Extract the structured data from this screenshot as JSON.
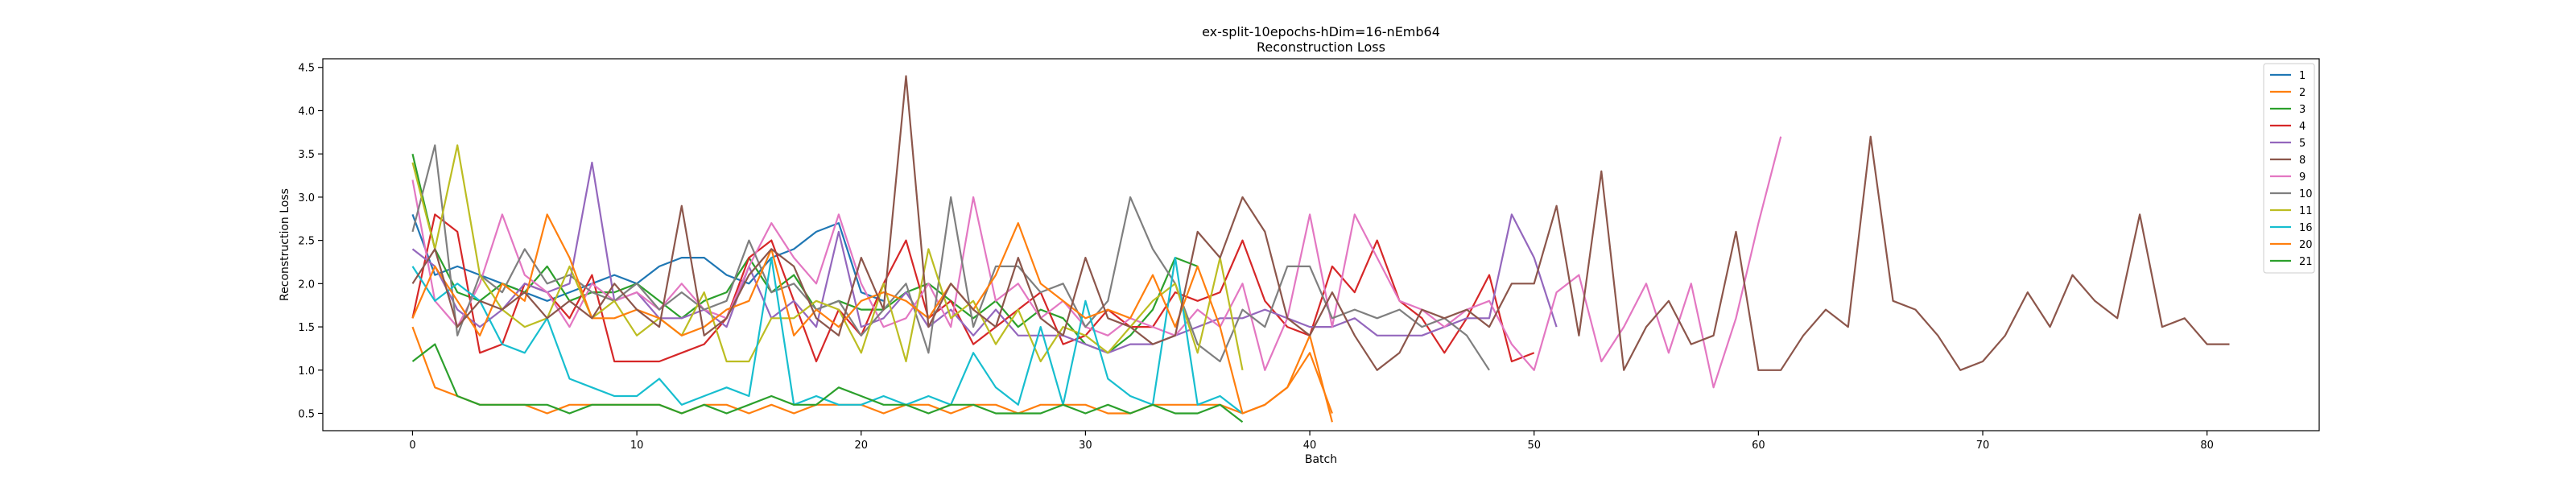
{
  "chart_data": {
    "type": "line",
    "title": "ex-split-10epochs-hDim=16-nEmb64",
    "subtitle": "Reconstruction Loss",
    "xlabel": "Batch",
    "ylabel": "Reconstruction Loss",
    "xlim": [
      -4,
      85
    ],
    "ylim": [
      0.3,
      4.6
    ],
    "xticks": [
      0,
      10,
      20,
      30,
      40,
      50,
      60,
      70,
      80
    ],
    "yticks": [
      0.5,
      1.0,
      1.5,
      2.0,
      2.5,
      3.0,
      3.5,
      4.0,
      4.5
    ],
    "grid": false,
    "legend_position": "top-right",
    "series": [
      {
        "name": "1",
        "color": "#1f77b4",
        "values": [
          2.8,
          2.1,
          2.2,
          2.1,
          2.0,
          1.9,
          1.8,
          1.9,
          2.0,
          2.1,
          2.0,
          2.2,
          2.3,
          2.3,
          2.1,
          2.0,
          2.3,
          2.4,
          2.6,
          2.7,
          1.9,
          1.8
        ]
      },
      {
        "name": "2",
        "color": "#ff7f0e",
        "values": [
          1.5,
          0.8,
          0.7,
          0.6,
          0.6,
          0.6,
          0.5,
          0.6,
          0.6,
          0.6,
          0.6,
          0.6,
          0.5,
          0.6,
          0.6,
          0.5,
          0.6,
          0.5,
          0.6,
          0.6,
          0.6,
          0.5,
          0.6,
          0.6,
          0.5,
          0.6,
          0.6,
          0.5,
          0.6,
          0.6,
          0.6,
          0.5,
          0.5,
          0.6,
          0.6,
          0.6,
          0.6,
          0.5,
          0.6,
          0.8,
          1.2,
          0.5
        ]
      },
      {
        "name": "3",
        "color": "#2ca02c",
        "values": [
          3.5,
          2.4,
          1.9,
          1.8,
          2.0,
          1.9,
          2.2,
          1.8,
          1.9,
          1.9,
          2.0,
          1.8,
          1.6,
          1.8,
          1.9,
          2.3,
          1.9,
          2.1,
          1.7,
          1.8,
          1.7,
          1.7,
          1.9,
          2.0,
          1.8,
          1.6,
          1.8,
          1.5,
          1.7,
          1.6,
          1.3,
          1.2,
          1.4,
          1.7,
          2.3,
          2.2
        ]
      },
      {
        "name": "4",
        "color": "#d62728",
        "values": [
          1.6,
          2.8,
          2.6,
          1.2,
          1.3,
          2.0,
          1.9,
          1.6,
          2.1,
          1.1,
          1.1,
          1.1,
          1.2,
          1.3,
          1.6,
          2.3,
          2.5,
          1.8,
          1.1,
          1.7,
          1.4,
          2.0,
          2.5,
          1.6,
          1.8,
          1.3,
          1.5,
          1.7,
          1.9,
          1.3,
          1.4,
          1.7,
          1.5,
          1.5,
          1.9,
          1.8,
          1.9,
          2.5,
          1.8,
          1.5,
          1.4,
          2.2,
          1.9,
          2.5,
          1.8,
          1.6,
          1.2,
          1.6,
          2.1,
          1.1,
          1.2
        ]
      },
      {
        "name": "5",
        "color": "#9467bd",
        "values": [
          2.4,
          2.2,
          1.7,
          1.5,
          1.7,
          2.0,
          1.9,
          2.0,
          3.4,
          1.8,
          1.9,
          1.6,
          1.6,
          1.7,
          1.5,
          2.2,
          1.6,
          1.8,
          1.5,
          2.6,
          1.5,
          1.6,
          1.9,
          1.5,
          1.7,
          1.4,
          1.7,
          1.4,
          1.4,
          1.4,
          1.3,
          1.2,
          1.3,
          1.3,
          1.4,
          1.5,
          1.6,
          1.6,
          1.7,
          1.6,
          1.5,
          1.5,
          1.6,
          1.4,
          1.4,
          1.4,
          1.5,
          1.6,
          1.6,
          2.8,
          2.3,
          1.5
        ]
      },
      {
        "name": "9",
        "color": "#e377c2",
        "values": [
          3.2,
          1.8,
          1.5,
          2.0,
          2.8,
          2.1,
          1.9,
          1.5,
          2.0,
          1.8,
          1.9,
          1.7,
          2.0,
          1.7,
          1.6,
          2.2,
          2.7,
          2.3,
          2.0,
          2.8,
          2.0,
          1.5,
          1.6,
          2.0,
          1.5,
          3.0,
          1.8,
          2.0,
          1.6,
          1.8,
          1.5,
          1.4,
          1.6,
          1.5,
          1.4,
          1.7,
          1.5,
          2.0,
          1.0,
          1.6,
          2.8,
          1.5,
          2.8,
          2.3,
          1.8,
          1.7,
          1.5,
          1.7,
          1.8,
          1.3,
          1.0,
          1.9,
          2.1,
          1.1,
          1.5,
          2.0,
          1.2,
          2.0,
          0.8,
          1.6,
          2.7,
          3.7
        ]
      },
      {
        "name": "10",
        "color": "#7f7f7f",
        "values": [
          2.6,
          3.6,
          1.4,
          2.1,
          1.9,
          2.4,
          2.0,
          2.1,
          1.9,
          1.8,
          2.0,
          1.7,
          1.9,
          1.7,
          1.8,
          2.5,
          1.9,
          2.0,
          1.7,
          1.8,
          1.4,
          1.7,
          2.0,
          1.2,
          3.0,
          1.5,
          2.2,
          2.2,
          1.9,
          2.0,
          1.5,
          1.8,
          3.0,
          2.4,
          2.0,
          1.3,
          1.1,
          1.7,
          1.5,
          2.2,
          2.2,
          1.6,
          1.7,
          1.6,
          1.7,
          1.5,
          1.6,
          1.4,
          1.0
        ]
      },
      {
        "name": "11",
        "color": "#bcbd22",
        "values": [
          3.4,
          2.4,
          3.6,
          2.1,
          1.7,
          1.5,
          1.6,
          2.2,
          1.6,
          1.8,
          1.4,
          1.6,
          1.4,
          1.9,
          1.1,
          1.1,
          1.6,
          1.6,
          1.8,
          1.7,
          1.2,
          2.0,
          1.1,
          2.4,
          1.6,
          1.8,
          1.3,
          1.7,
          1.1,
          1.5,
          1.4,
          1.2,
          1.5,
          1.8,
          2.0,
          1.2,
          2.3,
          1.0
        ]
      },
      {
        "name": "16",
        "color": "#17becf",
        "values": [
          2.2,
          1.8,
          2.0,
          1.8,
          1.3,
          1.2,
          1.6,
          0.9,
          0.8,
          0.7,
          0.7,
          0.9,
          0.6,
          0.7,
          0.8,
          0.7,
          2.3,
          0.6,
          0.7,
          0.6,
          0.6,
          0.7,
          0.6,
          0.7,
          0.6,
          1.2,
          0.8,
          0.6,
          1.5,
          0.6,
          1.8,
          0.9,
          0.7,
          0.6,
          2.3,
          0.6,
          0.7,
          0.5
        ]
      },
      {
        "name": "20",
        "color": "#ff7f0e",
        "values": [
          1.6,
          2.2,
          1.8,
          1.4,
          2.0,
          1.8,
          2.8,
          2.3,
          1.6,
          1.6,
          1.7,
          1.6,
          1.4,
          1.5,
          1.7,
          1.8,
          2.4,
          1.4,
          1.7,
          1.5,
          1.8,
          1.9,
          1.8,
          1.6,
          2.0,
          1.7,
          2.1,
          2.7,
          2.0,
          1.8,
          1.6,
          1.7,
          1.6,
          2.1,
          1.5,
          2.2,
          1.5,
          0.5,
          0.6,
          0.8,
          1.4,
          0.4
        ]
      },
      {
        "name": "21",
        "color": "#2ca02c",
        "values": [
          1.1,
          1.3,
          0.7,
          0.6,
          0.6,
          0.6,
          0.6,
          0.5,
          0.6,
          0.6,
          0.6,
          0.6,
          0.5,
          0.6,
          0.5,
          0.6,
          0.7,
          0.6,
          0.6,
          0.8,
          0.7,
          0.6,
          0.6,
          0.5,
          0.6,
          0.6,
          0.5,
          0.5,
          0.5,
          0.6,
          0.5,
          0.6,
          0.5,
          0.6,
          0.5,
          0.5,
          0.6,
          0.4
        ]
      },
      {
        "name": "8",
        "color": "#8c564b",
        "values": [
          2.0,
          2.4,
          1.5,
          1.8,
          1.7,
          1.9,
          1.6,
          1.8,
          1.6,
          2.0,
          1.7,
          1.5,
          2.9,
          1.4,
          1.6,
          2.1,
          2.4,
          2.2,
          1.6,
          1.4,
          2.3,
          1.7,
          4.4,
          1.5,
          2.0,
          1.7,
          1.5,
          2.3,
          1.6,
          1.4,
          2.3,
          1.6,
          1.5,
          1.3,
          1.4,
          2.6,
          2.3,
          3.0,
          2.6,
          1.6,
          1.4,
          1.9,
          1.4,
          1.0,
          1.2,
          1.7,
          1.6,
          1.7,
          1.5,
          2.0,
          2.0,
          2.9,
          1.4,
          3.3,
          1.0,
          1.5,
          1.8,
          1.3,
          1.4,
          2.6,
          1.0,
          1.0,
          1.4,
          1.7,
          1.5,
          3.7,
          1.8,
          1.7,
          1.4,
          1.0,
          1.1,
          1.4,
          1.9,
          1.5,
          2.1,
          1.8,
          1.6,
          2.8,
          1.5,
          1.6,
          1.3,
          1.3
        ]
      }
    ],
    "legend_order": [
      "1",
      "2",
      "3",
      "4",
      "5",
      "8",
      "9",
      "10",
      "11",
      "16",
      "20",
      "21"
    ]
  }
}
